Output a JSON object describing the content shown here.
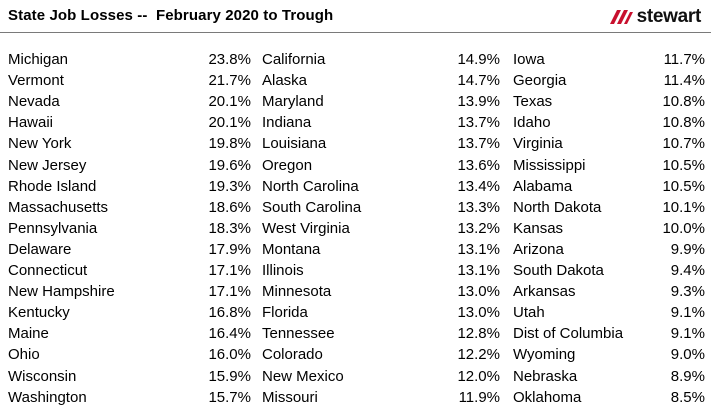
{
  "header": {
    "title": "State Job Losses --  February 2020 to Trough",
    "logo_text": "stewart",
    "logo_color": "#c8102e"
  },
  "chart_data": {
    "type": "table",
    "title": "State Job Losses --  February 2020 to Trough",
    "columns": [
      [
        {
          "state": "Michigan",
          "value": "23.8%"
        },
        {
          "state": "Vermont",
          "value": "21.7%"
        },
        {
          "state": "Nevada",
          "value": "20.1%"
        },
        {
          "state": "Hawaii",
          "value": "20.1%"
        },
        {
          "state": "New York",
          "value": "19.8%"
        },
        {
          "state": "New Jersey",
          "value": "19.6%"
        },
        {
          "state": "Rhode Island",
          "value": "19.3%"
        },
        {
          "state": "Massachusetts",
          "value": "18.6%"
        },
        {
          "state": "Pennsylvania",
          "value": "18.3%"
        },
        {
          "state": "Delaware",
          "value": "17.9%"
        },
        {
          "state": "Connecticut",
          "value": "17.1%"
        },
        {
          "state": "New Hampshire",
          "value": "17.1%"
        },
        {
          "state": "Kentucky",
          "value": "16.8%"
        },
        {
          "state": "Maine",
          "value": "16.4%"
        },
        {
          "state": "Ohio",
          "value": "16.0%"
        },
        {
          "state": "Wisconsin",
          "value": "15.9%"
        },
        {
          "state": "Washington",
          "value": "15.7%"
        }
      ],
      [
        {
          "state": "California",
          "value": "14.9%"
        },
        {
          "state": "Alaska",
          "value": "14.7%"
        },
        {
          "state": "Maryland",
          "value": "13.9%"
        },
        {
          "state": "Indiana",
          "value": "13.7%"
        },
        {
          "state": "Louisiana",
          "value": "13.7%"
        },
        {
          "state": "Oregon",
          "value": "13.6%"
        },
        {
          "state": "North Carolina",
          "value": "13.4%"
        },
        {
          "state": "South Carolina",
          "value": "13.3%"
        },
        {
          "state": "West Virginia",
          "value": "13.2%"
        },
        {
          "state": "Montana",
          "value": "13.1%"
        },
        {
          "state": "Illinois",
          "value": "13.1%"
        },
        {
          "state": "Minnesota",
          "value": "13.0%"
        },
        {
          "state": "Florida",
          "value": "13.0%"
        },
        {
          "state": "Tennessee",
          "value": "12.8%"
        },
        {
          "state": "Colorado",
          "value": "12.2%"
        },
        {
          "state": "New Mexico",
          "value": "12.0%"
        },
        {
          "state": "Missouri",
          "value": "11.9%"
        }
      ],
      [
        {
          "state": "Iowa",
          "value": "11.7%"
        },
        {
          "state": "Georgia",
          "value": "11.4%"
        },
        {
          "state": "Texas",
          "value": "10.8%"
        },
        {
          "state": "Idaho",
          "value": "10.8%"
        },
        {
          "state": "Virginia",
          "value": "10.7%"
        },
        {
          "state": "Mississippi",
          "value": "10.5%"
        },
        {
          "state": "Alabama",
          "value": "10.5%"
        },
        {
          "state": "North Dakota",
          "value": "10.1%"
        },
        {
          "state": "Kansas",
          "value": "10.0%"
        },
        {
          "state": "Arizona",
          "value": "9.9%"
        },
        {
          "state": "South Dakota",
          "value": "9.4%"
        },
        {
          "state": "Arkansas",
          "value": "9.3%"
        },
        {
          "state": "Utah",
          "value": "9.1%"
        },
        {
          "state": "Dist of Columbia",
          "value": "9.1%"
        },
        {
          "state": "Wyoming",
          "value": "9.0%"
        },
        {
          "state": "Nebraska",
          "value": "8.9%"
        },
        {
          "state": "Oklahoma",
          "value": "8.5%"
        }
      ]
    ]
  }
}
